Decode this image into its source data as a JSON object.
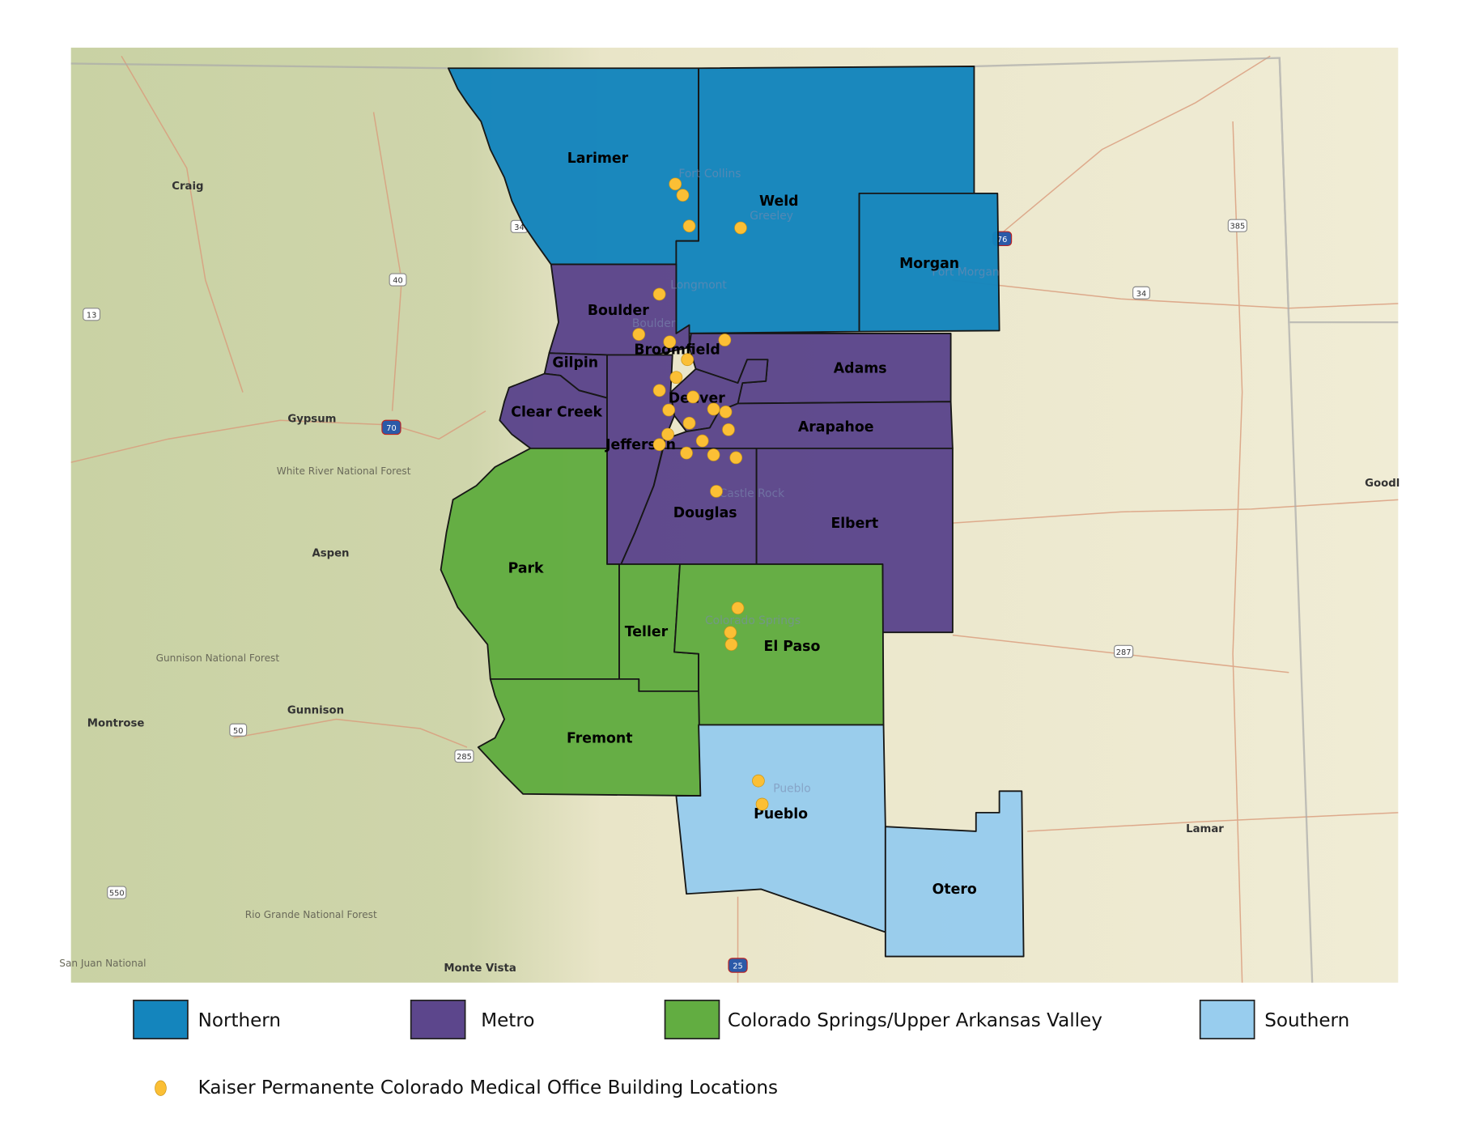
{
  "colors": {
    "northern": "#1485bd",
    "metro": "#5c468c",
    "colorado_springs": "#62ad41",
    "southern": "#98cdee",
    "office_marker": "#fbbf35",
    "basemap": "#ede8cf"
  },
  "counties": [
    {
      "name": "Larimer",
      "region": "northern"
    },
    {
      "name": "Weld",
      "region": "northern"
    },
    {
      "name": "Morgan",
      "region": "northern"
    },
    {
      "name": "Boulder",
      "region": "metro"
    },
    {
      "name": "Broomfield",
      "region": "metro"
    },
    {
      "name": "Gilpin",
      "region": "metro"
    },
    {
      "name": "Clear Creek",
      "region": "metro"
    },
    {
      "name": "Jefferson",
      "region": "metro"
    },
    {
      "name": "Denver",
      "region": "metro"
    },
    {
      "name": "Adams",
      "region": "metro"
    },
    {
      "name": "Arapahoe",
      "region": "metro"
    },
    {
      "name": "Douglas",
      "region": "metro"
    },
    {
      "name": "Elbert",
      "region": "metro"
    },
    {
      "name": "Park",
      "region": "colorado_springs"
    },
    {
      "name": "Teller",
      "region": "colorado_springs"
    },
    {
      "name": "El Paso",
      "region": "colorado_springs"
    },
    {
      "name": "Fremont",
      "region": "colorado_springs"
    },
    {
      "name": "Pueblo",
      "region": "southern"
    },
    {
      "name": "Otero",
      "region": "southern"
    }
  ],
  "basemap_places": [
    "Craig",
    "Gypsum",
    "Aspen",
    "Montrose",
    "Gunnison",
    "Monte Vista",
    "Lamar",
    "Goodl"
  ],
  "basemap_forests": [
    "White River National Forest",
    "Gunnison National Forest",
    "Rio Grande National Forest",
    "San Juan National"
  ],
  "basemap_cities_faint": [
    "Fort Collins",
    "Greeley",
    "Longmont",
    "Boulder",
    "Fort Morgan",
    "Castle Rock",
    "Colorado Springs",
    "Pueblo"
  ],
  "road_shields": [
    "34",
    "40",
    "13",
    "70",
    "50",
    "285",
    "550",
    "25",
    "385",
    "34",
    "287",
    "76"
  ],
  "legend": {
    "regions": [
      {
        "label": "Northern",
        "color": "#1485bd"
      },
      {
        "label": "Metro",
        "color": "#5c468c"
      },
      {
        "label": "Colorado Springs/Upper Arkansas Valley",
        "color": "#62ad41"
      },
      {
        "label": "Southern",
        "color": "#98cdee"
      }
    ],
    "marker_label": "Kaiser Permanente Colorado Medical Office Building Locations"
  }
}
